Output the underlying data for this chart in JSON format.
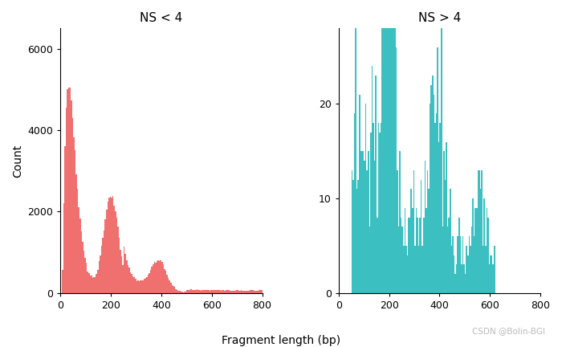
{
  "title_left": "NS < 4",
  "title_right": "NS > 4",
  "xlabel": "Fragment length (bp)",
  "ylabel": "Count",
  "color_left": "#F07070",
  "color_right": "#3BBFC0",
  "bg_color": "#FFFFFF",
  "watermark": "CSDN @Bolin-BGI",
  "xlim": [
    0,
    800
  ],
  "ylim_left": [
    0,
    6500
  ],
  "ylim_right": [
    0,
    28
  ],
  "yticks_left": [
    0,
    2000,
    4000,
    6000
  ],
  "yticks_right": [
    0,
    10,
    20
  ],
  "xticks": [
    0,
    200,
    400,
    600,
    800
  ]
}
